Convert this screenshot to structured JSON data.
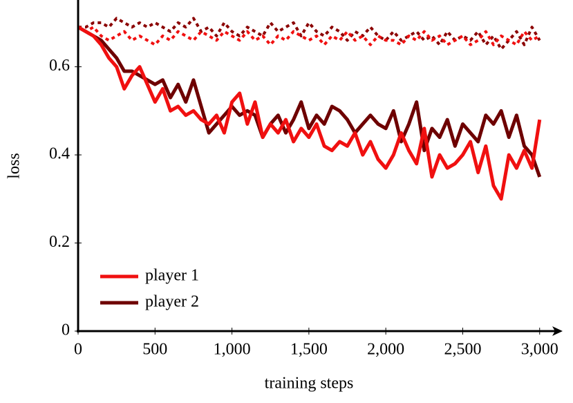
{
  "chart_data": {
    "type": "line",
    "xlabel": "training steps",
    "ylabel": "loss",
    "x": [
      0,
      50,
      100,
      150,
      200,
      250,
      300,
      350,
      400,
      450,
      500,
      550,
      600,
      650,
      700,
      750,
      800,
      850,
      900,
      950,
      1000,
      1050,
      1100,
      1150,
      1200,
      1250,
      1300,
      1350,
      1400,
      1450,
      1500,
      1550,
      1600,
      1650,
      1700,
      1750,
      1800,
      1850,
      1900,
      1950,
      2000,
      2050,
      2100,
      2150,
      2200,
      2250,
      2300,
      2350,
      2400,
      2450,
      2500,
      2550,
      2600,
      2650,
      2700,
      2750,
      2800,
      2850,
      2900,
      2950,
      3000
    ],
    "series": [
      {
        "name": "player 1",
        "color": "#f01010",
        "style": "solid",
        "values": [
          0.69,
          0.68,
          0.67,
          0.65,
          0.62,
          0.6,
          0.55,
          0.58,
          0.6,
          0.56,
          0.52,
          0.55,
          0.5,
          0.51,
          0.49,
          0.5,
          0.48,
          0.47,
          0.49,
          0.45,
          0.52,
          0.54,
          0.47,
          0.52,
          0.44,
          0.47,
          0.45,
          0.48,
          0.43,
          0.46,
          0.44,
          0.47,
          0.42,
          0.41,
          0.43,
          0.42,
          0.45,
          0.4,
          0.43,
          0.39,
          0.37,
          0.4,
          0.45,
          0.41,
          0.38,
          0.46,
          0.35,
          0.4,
          0.37,
          0.38,
          0.4,
          0.43,
          0.36,
          0.42,
          0.33,
          0.3,
          0.4,
          0.37,
          0.41,
          0.37,
          0.48
        ]
      },
      {
        "name": "player 2",
        "color": "#6e0000",
        "style": "solid",
        "values": [
          0.69,
          0.68,
          0.67,
          0.66,
          0.64,
          0.62,
          0.59,
          0.59,
          0.58,
          0.57,
          0.56,
          0.57,
          0.53,
          0.56,
          0.52,
          0.57,
          0.51,
          0.45,
          0.47,
          0.49,
          0.51,
          0.49,
          0.5,
          0.49,
          0.44,
          0.47,
          0.49,
          0.45,
          0.48,
          0.52,
          0.46,
          0.49,
          0.47,
          0.51,
          0.5,
          0.48,
          0.45,
          0.47,
          0.49,
          0.47,
          0.46,
          0.5,
          0.43,
          0.47,
          0.52,
          0.41,
          0.46,
          0.44,
          0.48,
          0.42,
          0.47,
          0.45,
          0.43,
          0.49,
          0.47,
          0.5,
          0.44,
          0.49,
          0.42,
          0.4,
          0.35
        ]
      },
      {
        "color": "#f01010",
        "style": "dotted",
        "values": [
          0.69,
          0.68,
          0.69,
          0.67,
          0.66,
          0.67,
          0.68,
          0.66,
          0.67,
          0.66,
          0.65,
          0.67,
          0.66,
          0.68,
          0.67,
          0.66,
          0.68,
          0.67,
          0.66,
          0.68,
          0.67,
          0.66,
          0.68,
          0.66,
          0.67,
          0.65,
          0.67,
          0.66,
          0.68,
          0.67,
          0.66,
          0.67,
          0.65,
          0.67,
          0.66,
          0.68,
          0.66,
          0.67,
          0.65,
          0.67,
          0.66,
          0.66,
          0.65,
          0.67,
          0.66,
          0.68,
          0.66,
          0.67,
          0.65,
          0.66,
          0.67,
          0.65,
          0.66,
          0.68,
          0.65,
          0.67,
          0.66,
          0.65,
          0.68,
          0.66,
          0.67
        ]
      },
      {
        "color": "#8b0000",
        "style": "dotted",
        "values": [
          0.69,
          0.69,
          0.7,
          0.7,
          0.69,
          0.71,
          0.7,
          0.69,
          0.7,
          0.69,
          0.7,
          0.69,
          0.68,
          0.7,
          0.69,
          0.71,
          0.68,
          0.69,
          0.67,
          0.7,
          0.68,
          0.67,
          0.69,
          0.68,
          0.67,
          0.7,
          0.68,
          0.69,
          0.7,
          0.67,
          0.7,
          0.68,
          0.67,
          0.69,
          0.68,
          0.66,
          0.68,
          0.67,
          0.69,
          0.67,
          0.66,
          0.68,
          0.66,
          0.67,
          0.68,
          0.66,
          0.67,
          0.65,
          0.68,
          0.66,
          0.67,
          0.66,
          0.68,
          0.65,
          0.67,
          0.64,
          0.66,
          0.68,
          0.65,
          0.69,
          0.66
        ]
      }
    ],
    "xlim": [
      0,
      3100
    ],
    "ylim": [
      0,
      0.75
    ],
    "xticks": [
      0,
      500,
      {
        "value": 1000,
        "label": "1,000"
      },
      {
        "value": 1500,
        "label": "1,500"
      },
      {
        "value": 2000,
        "label": "2,000"
      },
      {
        "value": 2500,
        "label": "2,500"
      },
      {
        "value": 3000,
        "label": "3,000"
      }
    ],
    "yticks": [
      0,
      0.2,
      0.4,
      0.6
    ],
    "legend": "lower left"
  }
}
